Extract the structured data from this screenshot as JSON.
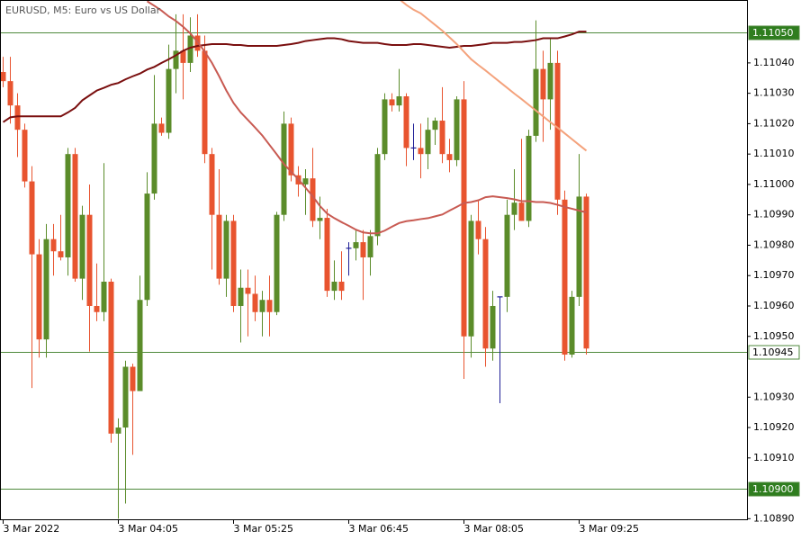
{
  "chart_data": {
    "type": "candlestick",
    "title": "EURUSD, M5:  Euro vs US Dollar",
    "categories": [
      "3 Mar 2022",
      null,
      null,
      null,
      null,
      null,
      null,
      null,
      null,
      null,
      null,
      null,
      null,
      null,
      null,
      null,
      "3 Mar 04:05",
      null,
      null,
      null,
      null,
      null,
      null,
      null,
      null,
      null,
      null,
      null,
      null,
      null,
      null,
      null,
      "3 Mar 05:25",
      null,
      null,
      null,
      null,
      null,
      null,
      null,
      null,
      null,
      null,
      null,
      null,
      null,
      null,
      null,
      "3 Mar 06:45",
      null,
      null,
      null,
      null,
      null,
      null,
      null,
      null,
      null,
      null,
      null,
      null,
      null,
      null,
      null,
      "3 Mar 08:05",
      null,
      null,
      null,
      null,
      null,
      null,
      null,
      null,
      null,
      null,
      null,
      null,
      null,
      null,
      null,
      "3 Mar 09:25",
      null
    ],
    "open": [
      1.11037,
      1.11034,
      1.11026,
      1.11018,
      1.11001,
      1.10977,
      1.10949,
      1.10982,
      1.10978,
      1.10976,
      1.1101,
      1.10969,
      1.1099,
      1.1096,
      1.10958,
      1.10968,
      1.10918,
      1.1092,
      1.1094,
      1.10932,
      1.10962,
      1.10997,
      1.1102,
      1.11017,
      1.11038,
      1.11044,
      1.1104,
      1.11049,
      1.11044,
      1.1101,
      1.1099,
      1.10969,
      1.10988,
      1.1096,
      1.10966,
      1.10964,
      1.10958,
      1.10962,
      1.10958,
      1.1099,
      1.1102,
      1.11003,
      1.11,
      1.11002,
      1.10988,
      1.10989,
      1.10965,
      1.10968,
      1.10979,
      1.10979,
      1.10981,
      1.10976,
      1.10983,
      1.1101,
      1.11028,
      1.11026,
      1.11029,
      1.11012,
      1.11012,
      1.1101,
      1.11018,
      1.11021,
      1.1101,
      1.11008,
      1.11028,
      1.1095,
      1.10988,
      1.10982,
      1.10946,
      1.10963,
      1.10963,
      1.1099,
      1.10994,
      1.10988,
      1.11016,
      1.11038,
      1.11028,
      1.1104,
      1.10995,
      1.10944,
      1.10963,
      1.10996
    ],
    "high": [
      1.11042,
      1.11042,
      1.1103,
      1.1102,
      1.11006,
      1.10982,
      1.10987,
      1.10987,
      1.1099,
      1.11012,
      1.11012,
      1.10993,
      1.11,
      1.10974,
      1.11007,
      1.10969,
      1.10923,
      1.10942,
      1.10941,
      1.1097,
      1.11004,
      1.11036,
      1.11022,
      1.11046,
      1.11056,
      1.11056,
      1.11055,
      1.11056,
      1.11049,
      1.11012,
      1.11005,
      1.1099,
      1.1099,
      1.10972,
      1.10972,
      1.1097,
      1.10965,
      1.1097,
      1.10991,
      1.11024,
      1.11022,
      1.11006,
      1.11005,
      1.11012,
      1.10996,
      1.10992,
      1.10975,
      1.10978,
      1.10981,
      1.10985,
      1.10985,
      1.10985,
      1.11012,
      1.1103,
      1.1103,
      1.11038,
      1.1103,
      1.1102,
      1.1102,
      1.11022,
      1.11022,
      1.11032,
      1.11015,
      1.11029,
      1.11034,
      1.1099,
      1.10995,
      1.10986,
      1.10965,
      1.10963,
      1.10995,
      1.11005,
      1.11015,
      1.11018,
      1.11054,
      1.11044,
      1.11048,
      1.11044,
      1.10998,
      1.10965,
      1.1101,
      1.10997
    ],
    "low": [
      1.11032,
      1.1102,
      1.11009,
      1.10999,
      1.10933,
      1.10943,
      1.10943,
      1.1097,
      1.10975,
      1.1097,
      1.10968,
      1.10962,
      1.10945,
      1.10955,
      1.10955,
      1.10915,
      1.1089,
      1.10895,
      1.10911,
      1.10932,
      1.1096,
      1.10995,
      1.11016,
      1.11015,
      1.1103,
      1.11028,
      1.11037,
      1.11042,
      1.11007,
      1.10972,
      1.10967,
      1.10963,
      1.10958,
      1.10948,
      1.1095,
      1.10955,
      1.1095,
      1.1095,
      1.10957,
      1.10988,
      1.11001,
      1.10996,
      1.1099,
      1.10986,
      1.10982,
      1.10963,
      1.10962,
      1.10962,
      1.1097,
      1.10975,
      1.10962,
      1.1097,
      1.1098,
      1.11008,
      1.11024,
      1.11024,
      1.11006,
      1.11008,
      1.11002,
      1.11005,
      1.11013,
      1.11007,
      1.11004,
      1.11006,
      1.10936,
      1.10943,
      1.10977,
      1.1094,
      1.10942,
      1.10928,
      1.10958,
      1.10985,
      1.10988,
      1.10986,
      1.11014,
      1.11014,
      1.11018,
      1.1099,
      1.10942,
      1.10943,
      1.1096,
      1.10944
    ],
    "close": [
      1.11034,
      1.11026,
      1.11018,
      1.11001,
      1.10977,
      1.10949,
      1.10982,
      1.10978,
      1.10976,
      1.1101,
      1.10969,
      1.1099,
      1.1096,
      1.10958,
      1.10968,
      1.10918,
      1.1092,
      1.1094,
      1.10932,
      1.10962,
      1.10997,
      1.1102,
      1.11017,
      1.11038,
      1.11044,
      1.1104,
      1.11049,
      1.11044,
      1.1101,
      1.1099,
      1.10969,
      1.10988,
      1.1096,
      1.10966,
      1.10964,
      1.10958,
      1.10962,
      1.10958,
      1.1099,
      1.1102,
      1.11003,
      1.11,
      1.11002,
      1.10988,
      1.10989,
      1.10965,
      1.10968,
      1.10965,
      1.10979,
      1.10981,
      1.10976,
      1.10983,
      1.1101,
      1.11028,
      1.11026,
      1.11029,
      1.11012,
      1.11012,
      1.1101,
      1.11018,
      1.11021,
      1.1101,
      1.11008,
      1.11028,
      1.1095,
      1.10988,
      1.10982,
      1.10946,
      1.1096,
      1.10963,
      1.1099,
      1.10994,
      1.10988,
      1.11016,
      1.11038,
      1.11028,
      1.1104,
      1.10995,
      1.10944,
      1.10963,
      1.10996,
      1.10946
    ],
    "up_color": "#5b8c2a",
    "down_color": "#e8542f",
    "doji_color": "#1e1e96",
    "series": [
      {
        "color": "#7a0f0f",
        "values": [
          1.110205,
          1.110221,
          1.110224,
          1.110224,
          1.110224,
          1.110224,
          1.110224,
          1.110224,
          1.110224,
          1.110237,
          1.110252,
          1.110277,
          1.110293,
          1.110309,
          1.110318,
          1.110328,
          1.110334,
          1.110346,
          1.110356,
          1.110365,
          1.110378,
          1.110387,
          1.1104,
          1.110412,
          1.110425,
          1.11044,
          1.11045,
          1.110456,
          1.110459,
          1.110462,
          1.110462,
          1.110462,
          1.110459,
          1.110459,
          1.110456,
          1.110456,
          1.110456,
          1.110456,
          1.110456,
          1.110459,
          1.110462,
          1.110466,
          1.110472,
          1.110475,
          1.110478,
          1.110481,
          1.110481,
          1.110478,
          1.110472,
          1.110469,
          1.110466,
          1.110466,
          1.110466,
          1.110462,
          1.110459,
          1.110459,
          1.110459,
          1.110462,
          1.110462,
          1.110459,
          1.110456,
          1.110453,
          1.11045,
          1.110453,
          1.110456,
          1.110456,
          1.110459,
          1.110462,
          1.110466,
          1.110466,
          1.110466,
          1.110469,
          1.110469,
          1.110472,
          1.110475,
          1.110481,
          1.110481,
          1.110481,
          1.110487,
          1.110494,
          1.110503,
          1.110503
        ]
      },
      {
        "color": "#c85a52",
        "values": [
          null,
          null,
          null,
          null,
          null,
          null,
          null,
          null,
          null,
          null,
          null,
          null,
          null,
          null,
          null,
          null,
          null,
          null,
          null,
          null,
          1.110603,
          1.110588,
          1.110572,
          1.110553,
          1.110538,
          1.110519,
          1.110497,
          1.110469,
          1.110437,
          1.1104,
          1.110356,
          1.110309,
          1.110268,
          1.110237,
          1.110212,
          1.110187,
          1.110161,
          1.11013,
          1.110099,
          1.110067,
          1.110042,
          1.110017,
          1.109989,
          1.109961,
          1.109929,
          1.109904,
          1.109889,
          1.109876,
          1.109864,
          1.109851,
          1.109842,
          1.109839,
          1.109839,
          1.109848,
          1.109861,
          1.109873,
          1.109879,
          1.109882,
          1.109886,
          1.109889,
          1.109895,
          1.109901,
          1.109914,
          1.109926,
          1.109939,
          1.109942,
          1.109948,
          1.109958,
          1.109961,
          1.109958,
          1.109955,
          1.109951,
          1.109945,
          1.109945,
          1.109942,
          1.109942,
          1.109939,
          1.109933,
          1.109926,
          1.10992,
          1.109914,
          1.109908
        ]
      },
      {
        "color": "#f4a27c",
        "values": [
          null,
          null,
          null,
          null,
          null,
          null,
          null,
          null,
          null,
          null,
          null,
          null,
          null,
          null,
          null,
          null,
          null,
          null,
          null,
          null,
          null,
          null,
          null,
          null,
          null,
          null,
          null,
          null,
          null,
          null,
          null,
          null,
          null,
          null,
          null,
          null,
          null,
          null,
          null,
          null,
          null,
          null,
          null,
          null,
          null,
          null,
          null,
          null,
          null,
          null,
          null,
          null,
          null,
          null,
          null,
          1.11061,
          1.110591,
          1.110575,
          1.110563,
          1.110544,
          1.110525,
          1.110506,
          1.110484,
          1.110462,
          1.110437,
          1.110412,
          1.110393,
          1.110375,
          1.110356,
          1.110337,
          1.110318,
          1.110299,
          1.110281,
          1.110262,
          1.110243,
          1.110224,
          1.110205,
          1.110187,
          1.110168,
          1.110149,
          1.11013,
          1.110111
        ]
      }
    ],
    "ylim": [
      1.108898,
      1.110607
    ],
    "yticks": [
      {
        "value": 1.1089,
        "label": "1.10890"
      },
      {
        "value": 1.1091,
        "label": "1.10910"
      },
      {
        "value": 1.1092,
        "label": "1.10920"
      },
      {
        "value": 1.1093,
        "label": "1.10930"
      },
      {
        "value": 1.1095,
        "label": "1.10950"
      },
      {
        "value": 1.1096,
        "label": "1.10960"
      },
      {
        "value": 1.1097,
        "label": "1.10970"
      },
      {
        "value": 1.1098,
        "label": "1.10980"
      },
      {
        "value": 1.1099,
        "label": "1.10990"
      },
      {
        "value": 1.11,
        "label": "1.11000"
      },
      {
        "value": 1.1101,
        "label": "1.11010"
      },
      {
        "value": 1.1102,
        "label": "1.11020"
      },
      {
        "value": 1.1103,
        "label": "1.11030"
      },
      {
        "value": 1.1104,
        "label": "1.11040"
      }
    ],
    "levels": [
      {
        "value": 1.1105,
        "label": "1.11050",
        "line_color": "#4f8a3c",
        "label_fill": "#2f7d1f",
        "label_color": "#ffffff"
      },
      {
        "value": 1.10945,
        "label": "1.10945",
        "line_color": "#4f8a3c",
        "label_fill": "#ffffff",
        "label_color": "#000000"
      },
      {
        "value": 1.109,
        "label": "1.10900",
        "line_color": "#4f8a3c",
        "label_fill": "#2f7d1f",
        "label_color": "#ffffff"
      }
    ]
  }
}
